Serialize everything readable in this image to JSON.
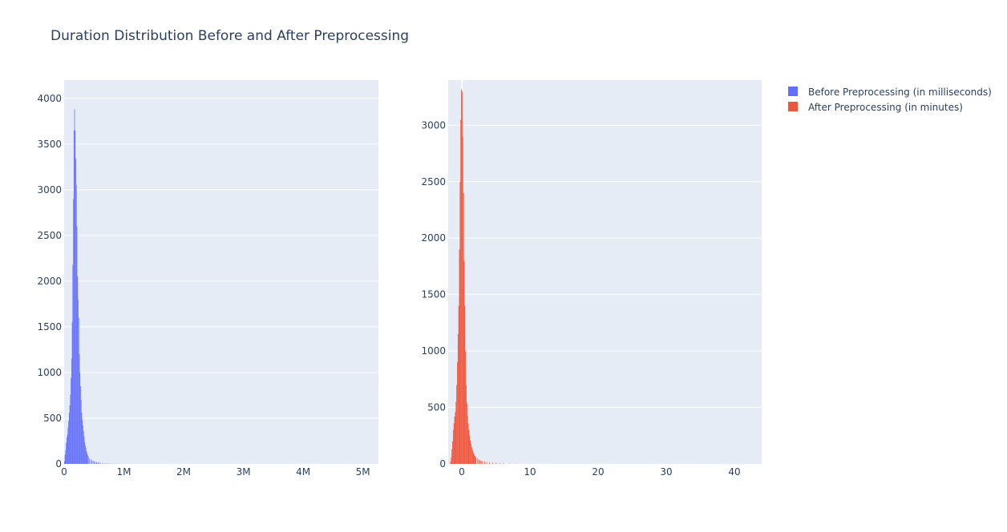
{
  "title": "Duration Distribution Before and After Preprocessing",
  "legend": [
    {
      "name": "Before Preprocessing (in milliseconds)",
      "color": "#636efa"
    },
    {
      "name": "After Preprocessing (in minutes)",
      "color": "#ef553b"
    }
  ],
  "chart_data": [
    {
      "type": "bar",
      "subtype": "histogram",
      "series": [
        {
          "name": "Before Preprocessing (in milliseconds)",
          "color": "#636efa"
        }
      ],
      "xlim": [
        0,
        5260000
      ],
      "ylim": [
        0,
        4200
      ],
      "x_ticks": [
        0,
        1000000,
        2000000,
        3000000,
        4000000,
        5000000
      ],
      "x_tick_labels": [
        "0",
        "1M",
        "2M",
        "3M",
        "4M",
        "5M"
      ],
      "y_ticks": [
        0,
        500,
        1000,
        1500,
        2000,
        2500,
        3000,
        3500,
        4000
      ],
      "y_tick_labels": [
        "0",
        "500",
        "1000",
        "1500",
        "2000",
        "2500",
        "3000",
        "3500",
        "4000"
      ],
      "bin_width": 10000,
      "bins": [
        [
          0,
          30
        ],
        [
          10000,
          100
        ],
        [
          20000,
          150
        ],
        [
          30000,
          230
        ],
        [
          40000,
          290
        ],
        [
          50000,
          320
        ],
        [
          60000,
          400
        ],
        [
          70000,
          470
        ],
        [
          80000,
          560
        ],
        [
          90000,
          640
        ],
        [
          100000,
          760
        ],
        [
          110000,
          940
        ],
        [
          120000,
          1150
        ],
        [
          130000,
          1550
        ],
        [
          140000,
          2180
        ],
        [
          150000,
          2900
        ],
        [
          160000,
          3650
        ],
        [
          170000,
          3880
        ],
        [
          180000,
          3650
        ],
        [
          190000,
          3340
        ],
        [
          200000,
          3050
        ],
        [
          210000,
          2600
        ],
        [
          220000,
          2050
        ],
        [
          230000,
          1800
        ],
        [
          240000,
          1600
        ],
        [
          250000,
          1200
        ],
        [
          260000,
          1000
        ],
        [
          270000,
          850
        ],
        [
          280000,
          700
        ],
        [
          290000,
          560
        ],
        [
          300000,
          480
        ],
        [
          310000,
          420
        ],
        [
          320000,
          360
        ],
        [
          330000,
          300
        ],
        [
          340000,
          240
        ],
        [
          350000,
          200
        ],
        [
          360000,
          170
        ],
        [
          370000,
          140
        ],
        [
          380000,
          115
        ],
        [
          390000,
          95
        ],
        [
          400000,
          80
        ],
        [
          420000,
          60
        ],
        [
          440000,
          48
        ],
        [
          460000,
          40
        ],
        [
          480000,
          33
        ],
        [
          500000,
          28
        ],
        [
          520000,
          23
        ],
        [
          540000,
          20
        ],
        [
          560000,
          17
        ],
        [
          580000,
          14
        ],
        [
          600000,
          12
        ],
        [
          640000,
          10
        ],
        [
          680000,
          8
        ],
        [
          720000,
          6
        ],
        [
          760000,
          5
        ],
        [
          800000,
          4
        ],
        [
          850000,
          3
        ],
        [
          900000,
          3
        ],
        [
          950000,
          2
        ],
        [
          1000000,
          2
        ],
        [
          1100000,
          1
        ],
        [
          1200000,
          1
        ]
      ]
    },
    {
      "type": "bar",
      "subtype": "histogram",
      "series": [
        {
          "name": "After Preprocessing (in minutes)",
          "color": "#ef553b"
        }
      ],
      "xlim": [
        -2,
        44
      ],
      "ylim": [
        0,
        3400
      ],
      "x_ticks": [
        0,
        10,
        20,
        30,
        40
      ],
      "x_tick_labels": [
        "0",
        "10",
        "20",
        "30",
        "40"
      ],
      "y_ticks": [
        0,
        500,
        1000,
        1500,
        2000,
        2500,
        3000
      ],
      "y_tick_labels": [
        "0",
        "500",
        "1000",
        "1500",
        "2000",
        "2500",
        "3000"
      ],
      "bin_width": 0.1,
      "bins": [
        [
          -1.7,
          20
        ],
        [
          -1.6,
          60
        ],
        [
          -1.5,
          130
        ],
        [
          -1.4,
          200
        ],
        [
          -1.3,
          300
        ],
        [
          -1.2,
          360
        ],
        [
          -1.1,
          420
        ],
        [
          -1.0,
          460
        ],
        [
          -0.9,
          550
        ],
        [
          -0.8,
          700
        ],
        [
          -0.7,
          900
        ],
        [
          -0.6,
          1150
        ],
        [
          -0.5,
          1400
        ],
        [
          -0.4,
          1900
        ],
        [
          -0.3,
          2500
        ],
        [
          -0.2,
          3050
        ],
        [
          -0.1,
          3320
        ],
        [
          0.0,
          3300
        ],
        [
          0.1,
          2900
        ],
        [
          0.2,
          2400
        ],
        [
          0.3,
          1800
        ],
        [
          0.4,
          1400
        ],
        [
          0.5,
          1000
        ],
        [
          0.6,
          700
        ],
        [
          0.7,
          540
        ],
        [
          0.8,
          430
        ],
        [
          0.9,
          360
        ],
        [
          1.0,
          300
        ],
        [
          1.1,
          250
        ],
        [
          1.2,
          210
        ],
        [
          1.3,
          180
        ],
        [
          1.4,
          150
        ],
        [
          1.5,
          130
        ],
        [
          1.6,
          110
        ],
        [
          1.7,
          95
        ],
        [
          1.8,
          80
        ],
        [
          1.9,
          70
        ],
        [
          2.0,
          60
        ],
        [
          2.2,
          50
        ],
        [
          2.4,
          40
        ],
        [
          2.6,
          34
        ],
        [
          2.8,
          28
        ],
        [
          3.0,
          24
        ],
        [
          3.3,
          20
        ],
        [
          3.6,
          16
        ],
        [
          4.0,
          13
        ],
        [
          4.5,
          10
        ],
        [
          5.0,
          8
        ],
        [
          5.5,
          6
        ],
        [
          6.0,
          5
        ],
        [
          7.0,
          3
        ],
        [
          8.0,
          2
        ],
        [
          10.0,
          1
        ],
        [
          12.0,
          1
        ]
      ]
    }
  ]
}
